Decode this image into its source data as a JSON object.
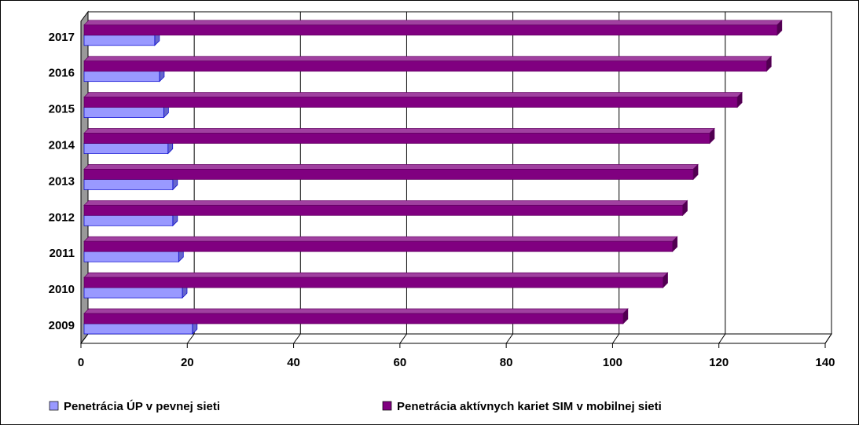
{
  "chart_data": {
    "type": "bar",
    "orientation": "horizontal",
    "categories": [
      "2009",
      "2010",
      "2011",
      "2012",
      "2013",
      "2014",
      "2015",
      "2016",
      "2017"
    ],
    "series": [
      {
        "name": "Penetrácia ÚP v pevnej sieti",
        "color": "#9999ff",
        "values": [
          20.4,
          18.5,
          17.8,
          16.7,
          16.7,
          15.8,
          15,
          14.2,
          13.3
        ]
      },
      {
        "name": "Penetrácia aktívnych kariet SIM v mobilnej  sieti",
        "color": "#800080",
        "values": [
          101.5,
          109,
          110.8,
          112.7,
          114.7,
          117.8,
          123,
          128.5,
          130.5
        ]
      }
    ],
    "xlim": [
      0,
      140
    ],
    "xticks": [
      0,
      20,
      40,
      60,
      80,
      100,
      120,
      140
    ],
    "grid": true,
    "legend": "bottom"
  }
}
